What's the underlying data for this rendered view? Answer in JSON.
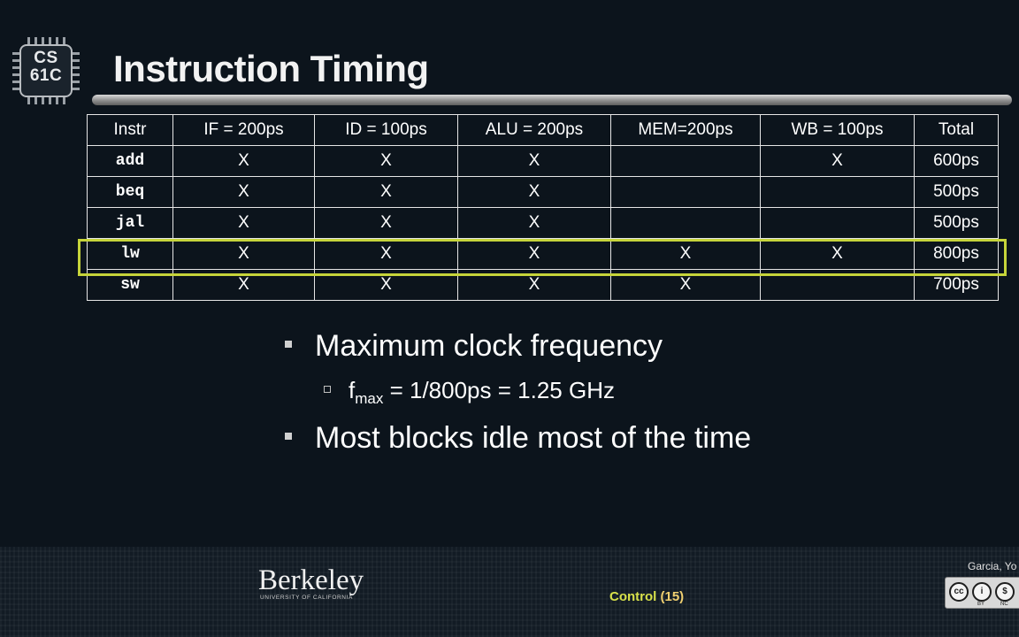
{
  "logo": {
    "line1": "CS",
    "line2": "61C"
  },
  "title": "Instruction Timing",
  "table": {
    "headers": [
      "Instr",
      "IF = 200ps",
      "ID = 100ps",
      "ALU = 200ps",
      "MEM=200ps",
      "WB = 100ps",
      "Total"
    ],
    "rows": [
      [
        "add",
        "X",
        "X",
        "X",
        "",
        "X",
        "600ps"
      ],
      [
        "beq",
        "X",
        "X",
        "X",
        "",
        "",
        "500ps"
      ],
      [
        "jal",
        "X",
        "X",
        "X",
        "",
        "",
        "500ps"
      ],
      [
        "lw",
        "X",
        "X",
        "X",
        "X",
        "X",
        "800ps"
      ],
      [
        "sw",
        "X",
        "X",
        "X",
        "X",
        "",
        "700ps"
      ]
    ],
    "highlighted_row": "lw",
    "highlight_color": "#c6d43a"
  },
  "bullets": {
    "first": "Maximum clock frequency",
    "sub_f": "f",
    "sub_subscript": "max",
    "sub_rest": " = 1/800ps = 1.25 GHz",
    "second": "Most blocks idle most of the time"
  },
  "footer": {
    "university": "Berkeley",
    "university_sub": "UNIVERSITY OF CALIFORNIA",
    "section": "Control",
    "slide_number": "(15)",
    "author": "Garcia, Yo",
    "license_labels": [
      "BY",
      "NC"
    ]
  }
}
